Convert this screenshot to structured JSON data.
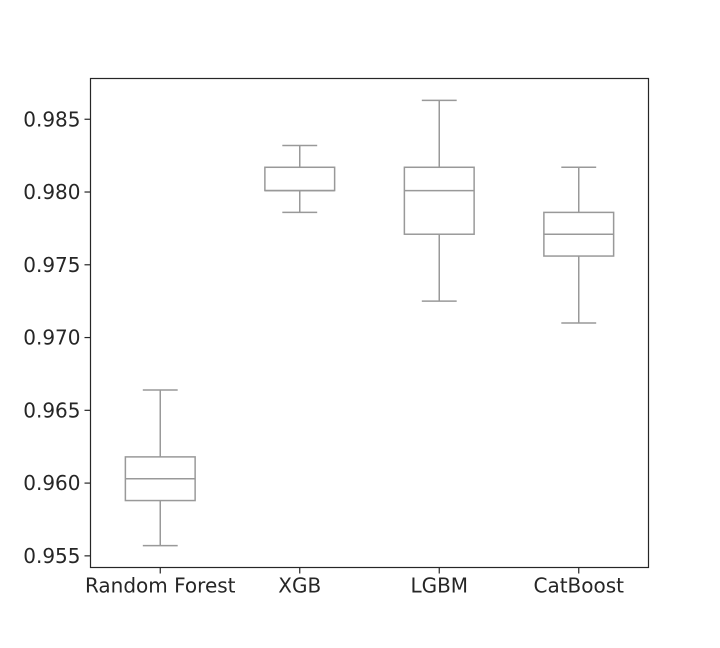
{
  "chart_data": {
    "type": "box",
    "title": "",
    "xlabel": "",
    "ylabel": "",
    "ylim": [
      0.9542,
      0.9878
    ],
    "yticks": [
      0.955,
      0.96,
      0.965,
      0.97,
      0.975,
      0.98,
      0.985
    ],
    "ytick_labels": [
      "0.955",
      "0.960",
      "0.965",
      "0.970",
      "0.975",
      "0.980",
      "0.985"
    ],
    "grid": false,
    "categories": [
      "Random Forest",
      "XGB",
      "LGBM",
      "CatBoost"
    ],
    "boxes": [
      {
        "category": "Random Forest",
        "whisker_low": 0.9557,
        "q1": 0.9588,
        "median": 0.9603,
        "q3": 0.9618,
        "whisker_high": 0.9664
      },
      {
        "category": "XGB",
        "whisker_low": 0.9786,
        "q1": 0.9801,
        "median": 0.9801,
        "q3": 0.9817,
        "whisker_high": 0.9832
      },
      {
        "category": "LGBM",
        "whisker_low": 0.9725,
        "q1": 0.9771,
        "median": 0.9801,
        "q3": 0.9817,
        "whisker_high": 0.9863
      },
      {
        "category": "CatBoost",
        "whisker_low": 0.971,
        "q1": 0.9756,
        "median": 0.9771,
        "q3": 0.9786,
        "whisker_high": 0.9817
      }
    ],
    "colors": {
      "box_edge": "#999999",
      "axes_edge": "#262626",
      "text": "#262626"
    }
  }
}
